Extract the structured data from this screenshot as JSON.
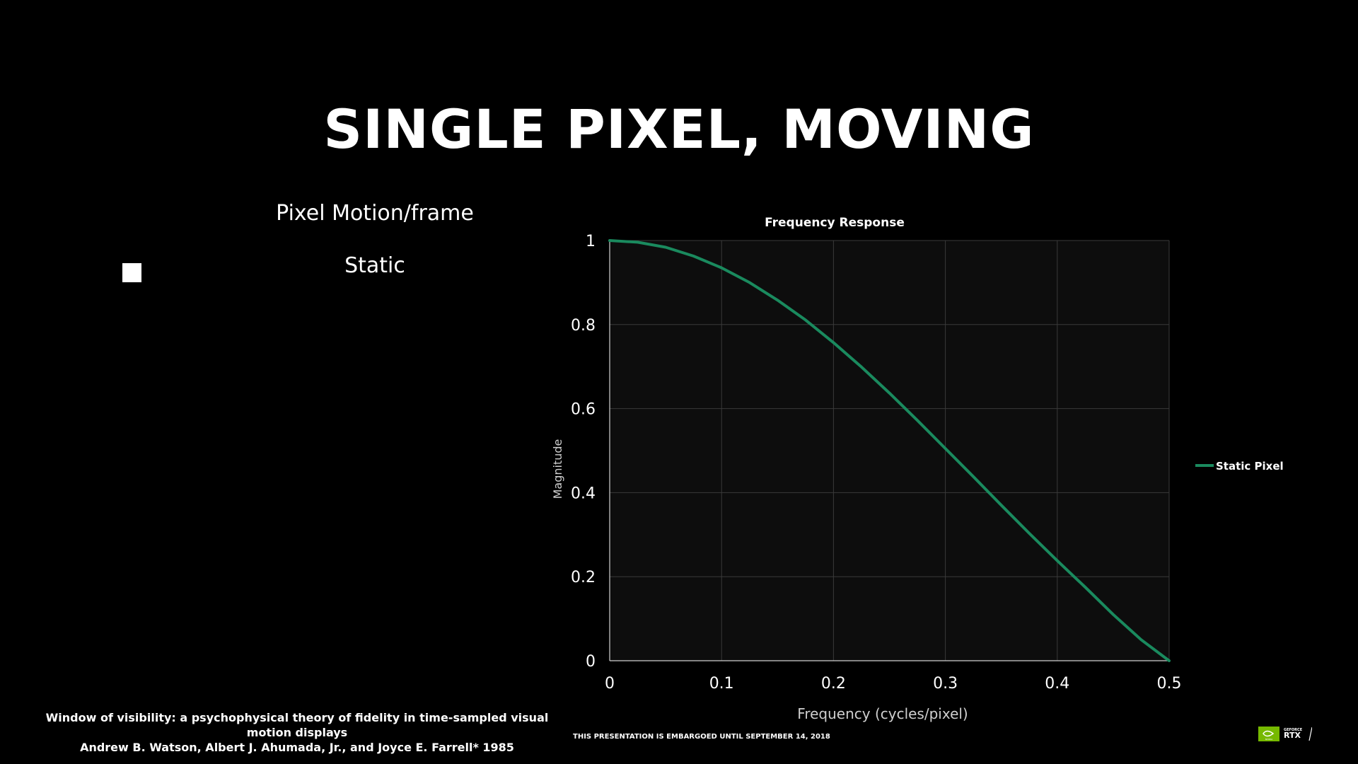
{
  "slide": {
    "title": "SINGLE PIXEL, MOVING",
    "column_header": "Pixel Motion/frame",
    "row_label": "Static",
    "citation_line1": "Window of visibility: a psychophysical theory of fidelity in time-sampled visual motion displays",
    "citation_line2": "Andrew B. Watson, Albert J. Ahumada, Jr., and Joyce E. Farrell* 1985",
    "embargo": "THIS PRESENTATION IS EMBARGOED UNTIL SEPTEMBER 14, 2018",
    "logo_brand": "NVIDIA",
    "logo_product_top": "GEFORCE",
    "logo_product": "RTX"
  },
  "chart_data": {
    "type": "line",
    "title": "Frequency Response",
    "xlabel": "Frequency (cycles/pixel)",
    "ylabel": "Magnitude",
    "xlim": [
      0,
      0.5
    ],
    "ylim": [
      0,
      1
    ],
    "x_ticks": [
      0,
      0.1,
      0.2,
      0.3,
      0.4,
      0.5
    ],
    "y_ticks": [
      0,
      0.2,
      0.4,
      0.6,
      0.8,
      1
    ],
    "x_tick_labels": [
      "0",
      "0.1",
      "0.2",
      "0.3",
      "0.4",
      "0.5"
    ],
    "y_tick_labels": [
      "0",
      "0.2",
      "0.4",
      "0.6",
      "0.8",
      "1"
    ],
    "grid": true,
    "legend_position": "right",
    "series": [
      {
        "name": "Static Pixel",
        "color": "#1a8a5e",
        "x": [
          0,
          0.025,
          0.05,
          0.075,
          0.1,
          0.125,
          0.15,
          0.175,
          0.2,
          0.225,
          0.25,
          0.275,
          0.3,
          0.325,
          0.35,
          0.375,
          0.4,
          0.425,
          0.45,
          0.475,
          0.5
        ],
        "y": [
          1.0,
          0.996,
          0.984,
          0.963,
          0.935,
          0.9,
          0.858,
          0.811,
          0.757,
          0.699,
          0.637,
          0.572,
          0.505,
          0.438,
          0.37,
          0.303,
          0.238,
          0.175,
          0.11,
          0.05,
          0.0
        ]
      }
    ],
    "colors": {
      "plot_background": "#0d0d0d",
      "grid": "#3a3a3a",
      "axis": "#cfcfcf"
    }
  }
}
